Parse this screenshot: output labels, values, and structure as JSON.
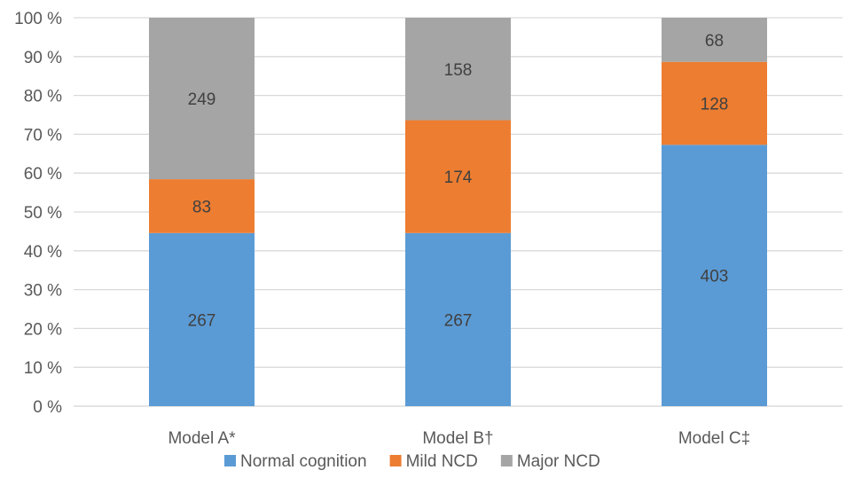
{
  "chart_data": {
    "type": "bar",
    "stacked": "percent",
    "categories": [
      "Model A*",
      "Model B†",
      "Model C‡"
    ],
    "series": [
      {
        "name": "Normal cognition",
        "values": [
          267,
          267,
          403
        ],
        "color": "#5B9BD5"
      },
      {
        "name": "Mild NCD",
        "values": [
          83,
          174,
          128
        ],
        "color": "#ED7D31"
      },
      {
        "name": "Major NCD",
        "values": [
          249,
          158,
          68
        ],
        "color": "#A5A5A5"
      }
    ],
    "y_ticks": [
      "0 %",
      "10 %",
      "20 %",
      "30 %",
      "40 %",
      "50 %",
      "60 %",
      "70 %",
      "80 %",
      "90 %",
      "100 %"
    ],
    "ylim": [
      0,
      100
    ],
    "grid": true,
    "legend": "bottom"
  }
}
